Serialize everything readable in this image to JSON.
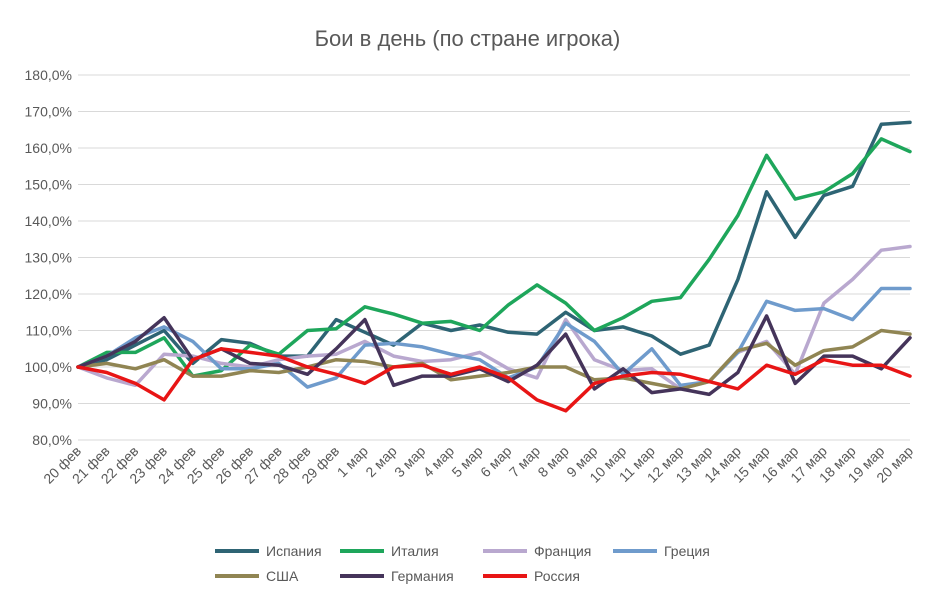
{
  "chart_data": {
    "type": "line",
    "title": "Бои в день (по стране игрока)",
    "xlabel": "",
    "ylabel": "",
    "ylim": [
      80,
      180
    ],
    "yticks": [
      "80,0%",
      "90,0%",
      "100,0%",
      "110,0%",
      "120,0%",
      "130,0%",
      "140,0%",
      "150,0%",
      "160,0%",
      "170,0%",
      "180,0%"
    ],
    "grid": true,
    "legend_position": "bottom",
    "categories": [
      "20 фев",
      "21 фев",
      "22 фев",
      "23 фев",
      "24 фев",
      "25 фев",
      "26 фев",
      "27 фев",
      "28 фев",
      "29 фев",
      "1 мар",
      "2 мар",
      "3 мар",
      "4 мар",
      "5 мар",
      "6 мар",
      "7 мар",
      "8 мар",
      "9 мар",
      "10 мар",
      "11 мар",
      "12 мар",
      "13 мар",
      "14 мар",
      "15 мар",
      "16 мар",
      "17 мар",
      "18 мар",
      "19 мар",
      "20 мар"
    ],
    "series": [
      {
        "name": "Испания",
        "color": "#2e6474",
        "values": [
          100,
          102,
          106,
          110,
          101,
          107.5,
          106.5,
          103,
          103,
          113,
          109.5,
          106,
          112,
          110,
          111.5,
          109.5,
          109,
          115,
          110,
          111,
          108.5,
          103.5,
          106,
          124,
          148,
          135.5,
          147,
          149.5,
          166.5,
          167
        ]
      },
      {
        "name": "Италия",
        "color": "#1ea65b",
        "values": [
          100,
          104,
          104,
          108,
          97.5,
          99,
          106,
          103.5,
          110,
          110.5,
          116.5,
          114.5,
          112,
          112.5,
          110,
          117,
          122.5,
          117.5,
          110,
          113.5,
          118,
          119,
          129.5,
          141.5,
          158,
          146,
          148,
          153,
          162.5,
          159
        ]
      },
      {
        "name": "Франция",
        "color": "#b9a8cf",
        "values": [
          100,
          97,
          95,
          103.5,
          103,
          101,
          100,
          102,
          103,
          103.5,
          107,
          103,
          101.5,
          102,
          104,
          99.5,
          97,
          113,
          102,
          99,
          99.5,
          94,
          96,
          104,
          107,
          98,
          117.5,
          124,
          132,
          133
        ]
      },
      {
        "name": "Греция",
        "color": "#6f9bcc",
        "values": [
          100,
          103,
          108,
          111,
          107,
          99.5,
          99.5,
          101,
          94.5,
          97,
          106,
          106.5,
          105.5,
          103.5,
          102,
          97,
          100,
          112,
          107,
          98,
          105,
          95,
          96,
          104,
          118,
          115.5,
          116,
          113,
          121.5,
          121.5
        ]
      },
      {
        "name": "США",
        "color": "#908553",
        "values": [
          100,
          101,
          99.5,
          102,
          97.5,
          97.5,
          99,
          98.5,
          100,
          102,
          101.5,
          100,
          101,
          96.5,
          97.5,
          98.5,
          100,
          100,
          96.5,
          97,
          95.5,
          94,
          96,
          104.5,
          106.5,
          100.5,
          104.5,
          105.5,
          110,
          109
        ]
      },
      {
        "name": "Германия",
        "color": "#45345a",
        "values": [
          100,
          103,
          107,
          113.5,
          102,
          105,
          101,
          100.5,
          98,
          105,
          113,
          95,
          97.5,
          97.5,
          99.5,
          96,
          100.5,
          109,
          94,
          99.5,
          93,
          94,
          92.5,
          98.5,
          114,
          95.5,
          103,
          103,
          99.5,
          108
        ]
      },
      {
        "name": "Россия",
        "color": "#e81515",
        "values": [
          100,
          98.5,
          95.5,
          91,
          102,
          105,
          104,
          103,
          100,
          98,
          95.5,
          100,
          100.5,
          98,
          100,
          97,
          91,
          88,
          95.5,
          97.5,
          98.5,
          98,
          96,
          94,
          100.5,
          98,
          102,
          100.5,
          100.5,
          97.5
        ]
      }
    ]
  }
}
